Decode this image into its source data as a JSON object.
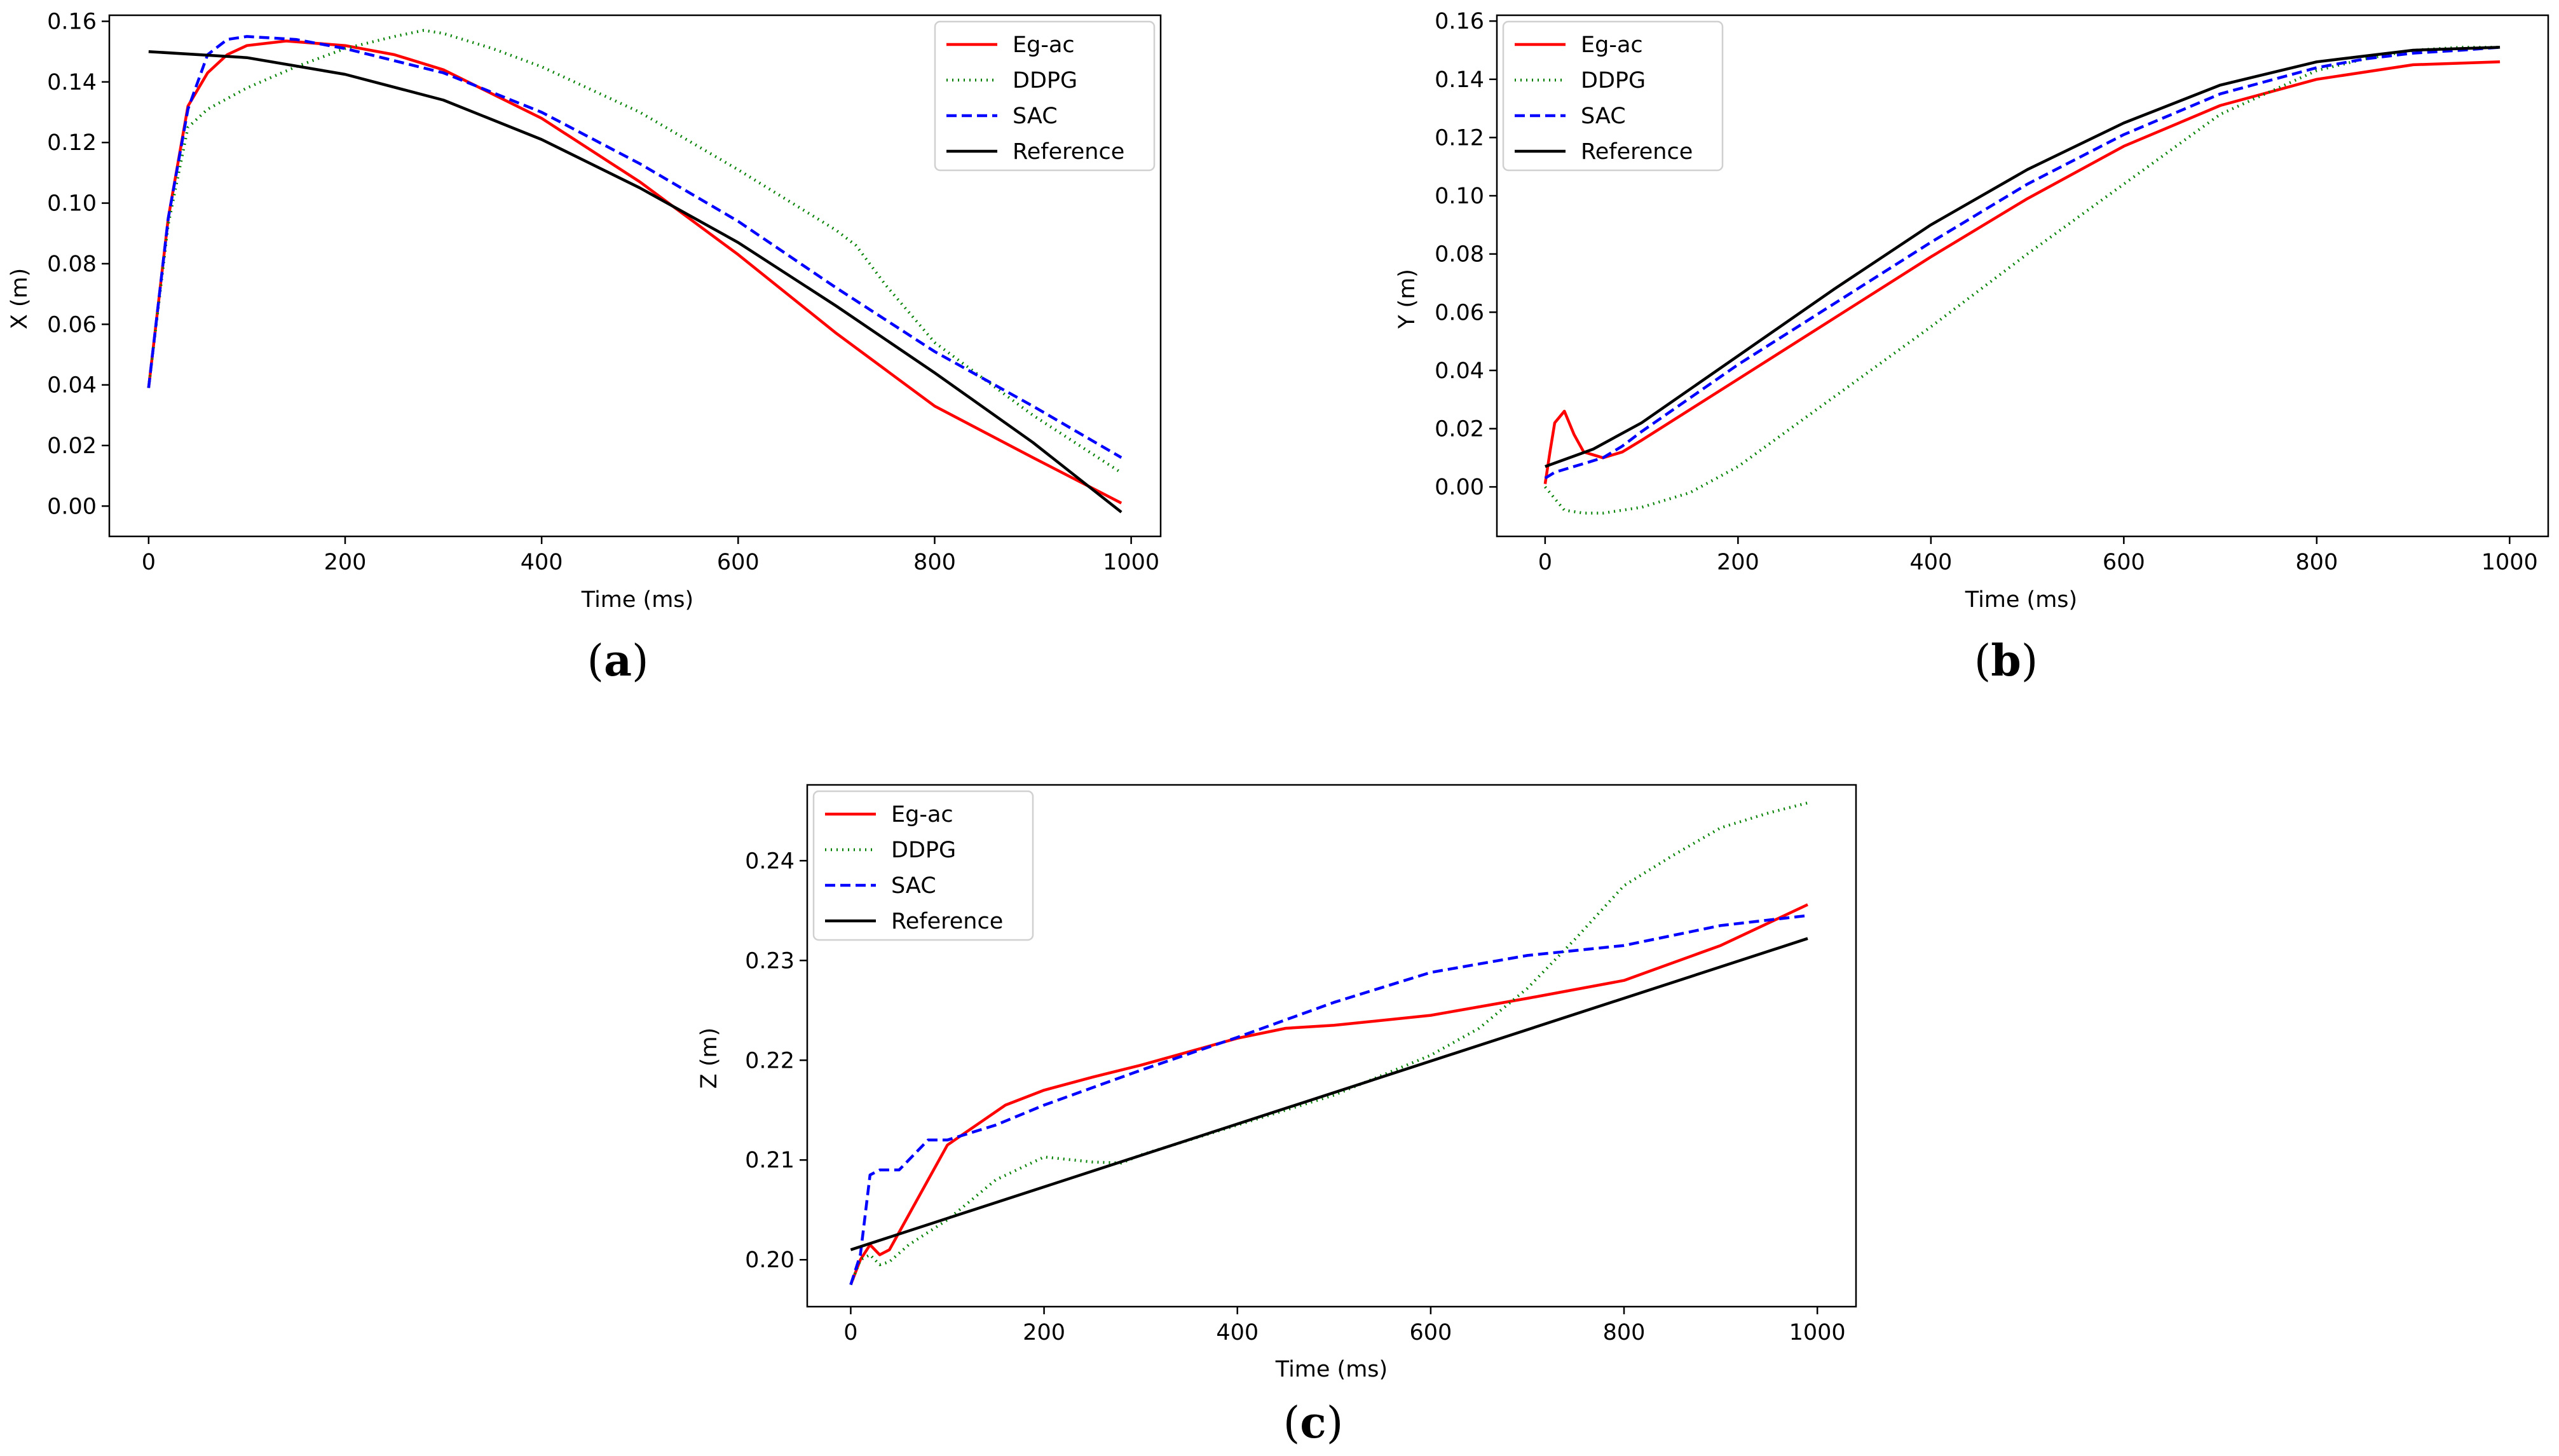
{
  "legend_entries": [
    {
      "name": "Eg-ac",
      "color": "#ff0000",
      "dash": "solid"
    },
    {
      "name": "DDPG",
      "color": "#008000",
      "dash": "dotted"
    },
    {
      "name": "SAC",
      "color": "#0000ff",
      "dash": "dashed"
    },
    {
      "name": "Reference",
      "color": "#000000",
      "dash": "solid"
    }
  ],
  "captions": {
    "a": {
      "open": "(",
      "letter": "a",
      "close": ")"
    },
    "b": {
      "open": "(",
      "letter": "b",
      "close": ")"
    },
    "c": {
      "open": "(",
      "letter": "c",
      "close": ")"
    }
  },
  "chart_data": [
    {
      "id": "a",
      "type": "line",
      "xlabel": "Time (ms)",
      "ylabel": "X (m)",
      "xlim": [
        -40,
        1030
      ],
      "ylim": [
        -0.01,
        0.162
      ],
      "xticks": [
        0,
        200,
        400,
        600,
        800,
        1000
      ],
      "yticks": [
        0.0,
        0.02,
        0.04,
        0.06,
        0.08,
        0.1,
        0.12,
        0.14,
        0.16
      ],
      "ytick_labels": [
        "0.00",
        "0.02",
        "0.04",
        "0.06",
        "0.08",
        "0.10",
        "0.12",
        "0.14",
        "0.16"
      ],
      "grid": false,
      "legend_position": "top-right",
      "series": [
        {
          "name": "Eg-ac",
          "color": "#ff0000",
          "dash": "solid",
          "x": [
            0,
            20,
            40,
            60,
            80,
            100,
            140,
            200,
            250,
            300,
            400,
            500,
            600,
            700,
            800,
            900,
            990
          ],
          "y": [
            0.039,
            0.095,
            0.132,
            0.143,
            0.149,
            0.152,
            0.1535,
            0.152,
            0.149,
            0.144,
            0.128,
            0.107,
            0.083,
            0.057,
            0.033,
            0.016,
            0.001
          ]
        },
        {
          "name": "DDPG",
          "color": "#008000",
          "dash": "dotted",
          "x": [
            0,
            20,
            40,
            60,
            100,
            150,
            200,
            250,
            280,
            300,
            350,
            400,
            500,
            600,
            700,
            720,
            750,
            800,
            900,
            990
          ],
          "y": [
            0.039,
            0.093,
            0.125,
            0.131,
            0.138,
            0.145,
            0.151,
            0.155,
            0.157,
            0.156,
            0.151,
            0.145,
            0.13,
            0.111,
            0.091,
            0.086,
            0.073,
            0.054,
            0.03,
            0.011
          ]
        },
        {
          "name": "SAC",
          "color": "#0000ff",
          "dash": "dashed",
          "x": [
            0,
            20,
            40,
            60,
            80,
            100,
            150,
            200,
            300,
            400,
            500,
            600,
            700,
            800,
            900,
            990
          ],
          "y": [
            0.039,
            0.095,
            0.131,
            0.149,
            0.154,
            0.155,
            0.154,
            0.151,
            0.143,
            0.13,
            0.113,
            0.094,
            0.072,
            0.051,
            0.033,
            0.016
          ]
        },
        {
          "name": "Reference",
          "color": "#000000",
          "dash": "solid",
          "x": [
            0,
            100,
            200,
            300,
            400,
            500,
            600,
            700,
            800,
            900,
            990
          ],
          "y": [
            0.15,
            0.148,
            0.1425,
            0.134,
            0.121,
            0.105,
            0.087,
            0.066,
            0.044,
            0.021,
            -0.002
          ]
        }
      ]
    },
    {
      "id": "b",
      "type": "line",
      "xlabel": "Time (ms)",
      "ylabel": "Y (m)",
      "xlim": [
        -50,
        1040
      ],
      "ylim": [
        -0.017,
        0.162
      ],
      "xticks": [
        0,
        200,
        400,
        600,
        800,
        1000
      ],
      "yticks": [
        0.0,
        0.02,
        0.04,
        0.06,
        0.08,
        0.1,
        0.12,
        0.14,
        0.16
      ],
      "ytick_labels": [
        "0.00",
        "0.02",
        "0.04",
        "0.06",
        "0.08",
        "0.10",
        "0.12",
        "0.14",
        "0.16"
      ],
      "grid": false,
      "legend_position": "top-left",
      "series": [
        {
          "name": "Eg-ac",
          "color": "#ff0000",
          "dash": "solid",
          "x": [
            0,
            5,
            10,
            20,
            30,
            40,
            60,
            80,
            100,
            200,
            300,
            400,
            500,
            600,
            700,
            800,
            900,
            990
          ],
          "y": [
            0.001,
            0.012,
            0.022,
            0.026,
            0.018,
            0.012,
            0.01,
            0.012,
            0.016,
            0.037,
            0.058,
            0.079,
            0.099,
            0.117,
            0.131,
            0.14,
            0.145,
            0.146
          ]
        },
        {
          "name": "DDPG",
          "color": "#008000",
          "dash": "dotted",
          "x": [
            0,
            10,
            20,
            40,
            60,
            100,
            150,
            200,
            300,
            400,
            500,
            600,
            700,
            800,
            850,
            900,
            950,
            990
          ],
          "y": [
            0.0,
            -0.004,
            -0.008,
            -0.009,
            -0.009,
            -0.007,
            -0.002,
            0.007,
            0.031,
            0.055,
            0.08,
            0.104,
            0.128,
            0.143,
            0.147,
            0.15,
            0.151,
            0.151
          ]
        },
        {
          "name": "SAC",
          "color": "#0000ff",
          "dash": "dashed",
          "x": [
            0,
            10,
            20,
            40,
            60,
            80,
            100,
            200,
            300,
            400,
            500,
            600,
            700,
            800,
            850,
            900,
            950,
            990
          ],
          "y": [
            0.003,
            0.005,
            0.006,
            0.008,
            0.01,
            0.014,
            0.019,
            0.042,
            0.063,
            0.084,
            0.104,
            0.121,
            0.135,
            0.144,
            0.147,
            0.149,
            0.15,
            0.151
          ]
        },
        {
          "name": "Reference",
          "color": "#000000",
          "dash": "solid",
          "x": [
            0,
            50,
            100,
            200,
            300,
            400,
            500,
            600,
            700,
            800,
            900,
            990
          ],
          "y": [
            0.007,
            0.013,
            0.022,
            0.045,
            0.068,
            0.09,
            0.109,
            0.125,
            0.138,
            0.146,
            0.15,
            0.151
          ]
        }
      ]
    },
    {
      "id": "c",
      "type": "line",
      "xlabel": "Time (ms)",
      "ylabel": "Z (m)",
      "xlim": [
        -45,
        1040
      ],
      "ylim": [
        0.1953,
        0.2476
      ],
      "xticks": [
        0,
        200,
        400,
        600,
        800,
        1000
      ],
      "yticks": [
        0.2,
        0.21,
        0.22,
        0.23,
        0.24
      ],
      "ytick_labels": [
        "0.20",
        "0.21",
        "0.22",
        "0.23",
        "0.24"
      ],
      "grid": false,
      "legend_position": "top-left",
      "series": [
        {
          "name": "Eg-ac",
          "color": "#ff0000",
          "dash": "solid",
          "x": [
            0,
            10,
            20,
            30,
            40,
            60,
            80,
            100,
            130,
            160,
            200,
            250,
            300,
            400,
            450,
            500,
            600,
            700,
            800,
            900,
            990
          ],
          "y": [
            0.1975,
            0.2,
            0.2015,
            0.2005,
            0.201,
            0.2045,
            0.208,
            0.2115,
            0.2135,
            0.2155,
            0.217,
            0.2183,
            0.2195,
            0.2222,
            0.2232,
            0.2235,
            0.2245,
            0.2262,
            0.228,
            0.2315,
            0.2356
          ]
        },
        {
          "name": "DDPG",
          "color": "#008000",
          "dash": "dotted",
          "x": [
            0,
            10,
            20,
            30,
            40,
            60,
            100,
            150,
            200,
            250,
            280,
            300,
            400,
            500,
            600,
            650,
            700,
            750,
            800,
            850,
            900,
            950,
            990
          ],
          "y": [
            0.1975,
            0.2,
            0.2005,
            0.1995,
            0.1998,
            0.2015,
            0.204,
            0.208,
            0.2103,
            0.2098,
            0.2097,
            0.2105,
            0.2135,
            0.2165,
            0.2205,
            0.2232,
            0.2272,
            0.2322,
            0.2375,
            0.2405,
            0.2433,
            0.2448,
            0.2458
          ]
        },
        {
          "name": "SAC",
          "color": "#0000ff",
          "dash": "dashed",
          "x": [
            0,
            10,
            20,
            30,
            50,
            80,
            100,
            150,
            200,
            300,
            400,
            500,
            600,
            700,
            800,
            900,
            990
          ],
          "y": [
            0.1975,
            0.2005,
            0.2085,
            0.209,
            0.209,
            0.212,
            0.212,
            0.2135,
            0.2155,
            0.219,
            0.2223,
            0.2258,
            0.2288,
            0.2305,
            0.2315,
            0.2335,
            0.2345
          ]
        },
        {
          "name": "Reference",
          "color": "#000000",
          "dash": "solid",
          "x": [
            0,
            990
          ],
          "y": [
            0.201,
            0.2322
          ]
        }
      ]
    }
  ]
}
